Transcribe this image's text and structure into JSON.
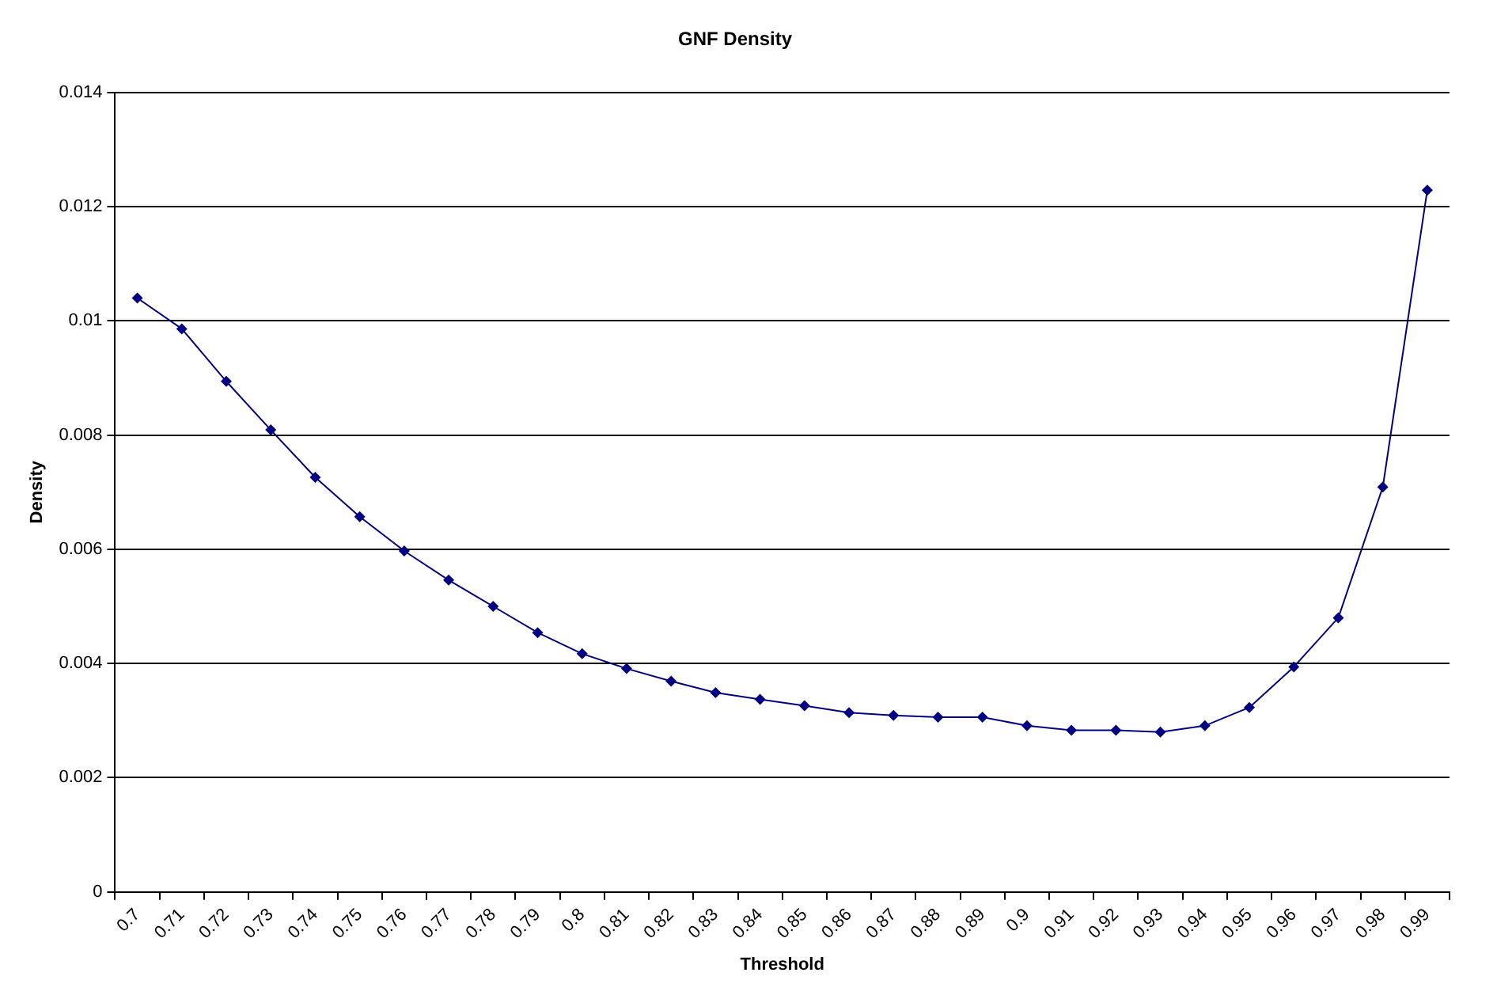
{
  "chart_data": {
    "type": "line",
    "title": "GNF Density",
    "xlabel": "Threshold",
    "ylabel": "Density",
    "categories": [
      "0.7",
      "0.71",
      "0.72",
      "0.73",
      "0.74",
      "0.75",
      "0.76",
      "0.77",
      "0.78",
      "0.79",
      "0.8",
      "0.81",
      "0.82",
      "0.83",
      "0.84",
      "0.85",
      "0.86",
      "0.87",
      "0.88",
      "0.89",
      "0.9",
      "0.91",
      "0.92",
      "0.93",
      "0.94",
      "0.95",
      "0.96",
      "0.97",
      "0.98",
      "0.99"
    ],
    "series": [
      {
        "color": "#000080",
        "values": [
          0.0104,
          0.00986,
          0.00894,
          0.00809,
          0.00726,
          0.00657,
          0.00597,
          0.00546,
          0.005,
          0.00454,
          0.00417,
          0.00391,
          0.00369,
          0.00349,
          0.00337,
          0.00326,
          0.00314,
          0.00309,
          0.00306,
          0.00306,
          0.00291,
          0.00283,
          0.00283,
          0.0028,
          0.00291,
          0.00323,
          0.00394,
          0.0048,
          0.00709,
          0.01229
        ]
      }
    ],
    "ylim": [
      0,
      0.014
    ],
    "yticks": [
      0,
      0.002,
      0.004,
      0.006,
      0.008,
      0.01,
      0.012,
      0.014
    ],
    "grid": "y",
    "marker": "diamond",
    "line_style": "solid"
  }
}
